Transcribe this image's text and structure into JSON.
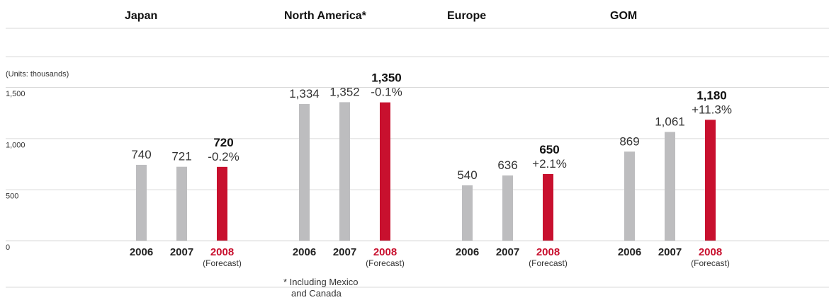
{
  "chart_data": {
    "type": "bar",
    "units_label": "(Units: thousands)",
    "ylim": [
      0,
      1500
    ],
    "yticks": [
      0,
      500,
      1000,
      1500
    ],
    "ytick_labels": [
      "0",
      "500",
      "1,000",
      "1,500"
    ],
    "grid": true,
    "colors": {
      "actual": "#bdbdbf",
      "forecast": "#c8102e"
    },
    "forecast_note": "(Forecast)",
    "footnote": [
      "* Including Mexico",
      "and Canada"
    ],
    "groups": [
      {
        "region": "Japan",
        "bars": [
          {
            "year": "2006",
            "value": 740,
            "label": "740"
          },
          {
            "year": "2007",
            "value": 721,
            "label": "721"
          },
          {
            "year": "2008",
            "value": 720,
            "label": "720",
            "change": "-0.2%",
            "forecast": true
          }
        ]
      },
      {
        "region": "North America*",
        "bars": [
          {
            "year": "2006",
            "value": 1334,
            "label": "1,334"
          },
          {
            "year": "2007",
            "value": 1352,
            "label": "1,352"
          },
          {
            "year": "2008",
            "value": 1350,
            "label": "1,350",
            "change": "-0.1%",
            "forecast": true
          }
        ]
      },
      {
        "region": "Europe",
        "bars": [
          {
            "year": "2006",
            "value": 540,
            "label": "540"
          },
          {
            "year": "2007",
            "value": 636,
            "label": "636"
          },
          {
            "year": "2008",
            "value": 650,
            "label": "650",
            "change": "+2.1%",
            "forecast": true
          }
        ]
      },
      {
        "region": "GOM",
        "bars": [
          {
            "year": "2006",
            "value": 869,
            "label": "869"
          },
          {
            "year": "2007",
            "value": 1061,
            "label": "1,061"
          },
          {
            "year": "2008",
            "value": 1180,
            "label": "1,180",
            "change": "+11.3%",
            "forecast": true
          }
        ]
      }
    ]
  }
}
